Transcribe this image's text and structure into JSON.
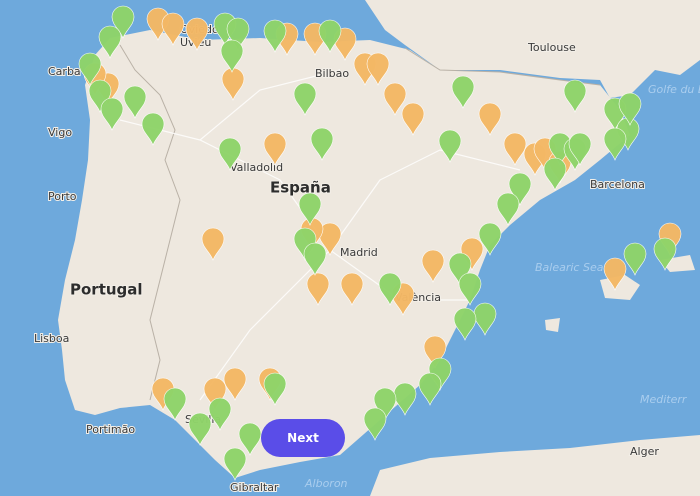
{
  "places": [
    "Toulouse",
    "Oviedo",
    "Uviéu",
    "Bilbao",
    "Carba",
    "Vigo",
    "Porto",
    "Valladolid",
    "España",
    "Madrid",
    "Portugal",
    "Lisboa",
    "València",
    "Barcelona",
    "Balearic Sea",
    "Golfe du Lion",
    "Sevilla",
    "Portimão",
    "Alger",
    "Alboron",
    "Mediterr",
    "Gibraltar"
  ],
  "button": {
    "label": "Next"
  }
}
